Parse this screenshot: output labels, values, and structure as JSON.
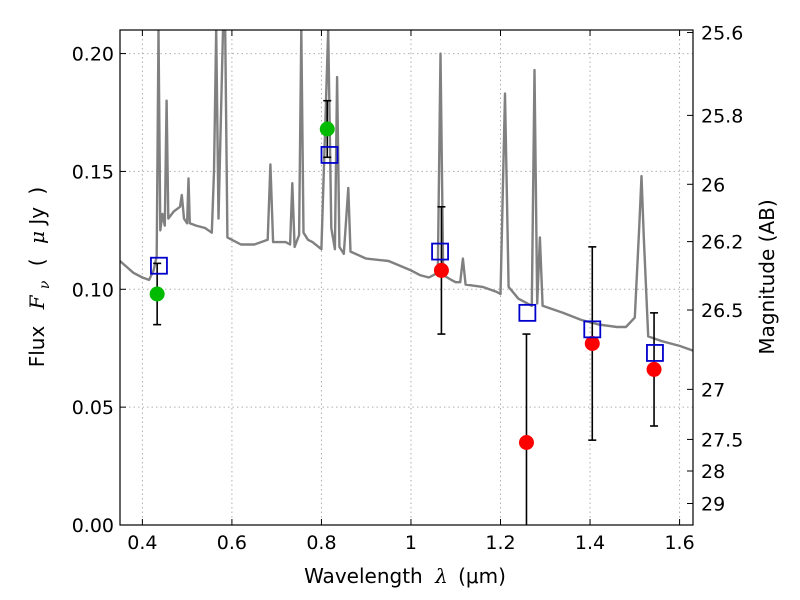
{
  "chart_data": {
    "type": "scatter",
    "xlabel_text": "Wavelength",
    "xlabel_symbol": "λ",
    "xlabel_unit": "(μm)",
    "ylabel_text": "Flux",
    "ylabel_symbol": "F",
    "ylabel_subscript": "ν",
    "ylabel_open": "(",
    "ylabel_unit_symbol": "μ",
    "ylabel_unit": "Jy",
    "ylabel_close": ")",
    "y2label": "Magnitude (AB)",
    "xlim": [
      0.35,
      1.63
    ],
    "ylim": [
      0.0,
      0.21
    ],
    "grid": true,
    "x_ticks": [
      {
        "v": 0.4,
        "label": "0.4"
      },
      {
        "v": 0.6,
        "label": "0.6"
      },
      {
        "v": 0.8,
        "label": "0.8"
      },
      {
        "v": 1.0,
        "label": "1"
      },
      {
        "v": 1.2,
        "label": "1.2"
      },
      {
        "v": 1.4,
        "label": "1.4"
      },
      {
        "v": 1.6,
        "label": "1.6"
      }
    ],
    "y_ticks": [
      {
        "v": 0.0,
        "label": "0.00"
      },
      {
        "v": 0.05,
        "label": "0.05"
      },
      {
        "v": 0.1,
        "label": "0.10"
      },
      {
        "v": 0.15,
        "label": "0.15"
      },
      {
        "v": 0.2,
        "label": "0.20"
      }
    ],
    "mag_ticks": [
      {
        "mag": 25.6,
        "label": "25.6"
      },
      {
        "mag": 25.8,
        "label": "25.8"
      },
      {
        "mag": 26,
        "label": "26"
      },
      {
        "mag": 26.2,
        "label": "26.2"
      },
      {
        "mag": 26.5,
        "label": "26.5"
      },
      {
        "mag": 27,
        "label": "27"
      },
      {
        "mag": 27.5,
        "label": "27.5"
      },
      {
        "mag": 28,
        "label": "28"
      },
      {
        "mag": 29,
        "label": "29"
      }
    ],
    "colors": {
      "model": "#808080",
      "green": "#00bb00",
      "red": "#ff0000",
      "square": "#0000cc",
      "errorbar": "#000000",
      "grid": "#b0b0b0"
    },
    "series": [
      {
        "kind": "model_spectrum",
        "points": [
          [
            0.35,
            0.112
          ],
          [
            0.38,
            0.107
          ],
          [
            0.4,
            0.105
          ],
          [
            0.415,
            0.104
          ],
          [
            0.425,
            0.108
          ],
          [
            0.432,
            0.114
          ],
          [
            0.436,
            0.21
          ],
          [
            0.44,
            0.125
          ],
          [
            0.445,
            0.132
          ],
          [
            0.45,
            0.127
          ],
          [
            0.454,
            0.18
          ],
          [
            0.458,
            0.13
          ],
          [
            0.47,
            0.133
          ],
          [
            0.484,
            0.135
          ],
          [
            0.488,
            0.14
          ],
          [
            0.493,
            0.13
          ],
          [
            0.5,
            0.128
          ],
          [
            0.503,
            0.147
          ],
          [
            0.506,
            0.128
          ],
          [
            0.52,
            0.127
          ],
          [
            0.54,
            0.126
          ],
          [
            0.555,
            0.124
          ],
          [
            0.56,
            0.15
          ],
          [
            0.565,
            0.21
          ],
          [
            0.57,
            0.13
          ],
          [
            0.58,
            0.21
          ],
          [
            0.585,
            0.21
          ],
          [
            0.59,
            0.122
          ],
          [
            0.62,
            0.119
          ],
          [
            0.65,
            0.119
          ],
          [
            0.68,
            0.121
          ],
          [
            0.686,
            0.153
          ],
          [
            0.692,
            0.12
          ],
          [
            0.72,
            0.12
          ],
          [
            0.73,
            0.119
          ],
          [
            0.735,
            0.145
          ],
          [
            0.74,
            0.118
          ],
          [
            0.75,
            0.123
          ],
          [
            0.755,
            0.21
          ],
          [
            0.76,
            0.124
          ],
          [
            0.77,
            0.121
          ],
          [
            0.78,
            0.12
          ],
          [
            0.8,
            0.117
          ],
          [
            0.815,
            0.21
          ],
          [
            0.822,
            0.126
          ],
          [
            0.83,
            0.117
          ],
          [
            0.835,
            0.19
          ],
          [
            0.84,
            0.118
          ],
          [
            0.85,
            0.115
          ],
          [
            0.86,
            0.143
          ],
          [
            0.865,
            0.116
          ],
          [
            0.9,
            0.113
          ],
          [
            0.95,
            0.112
          ],
          [
            1.0,
            0.108
          ],
          [
            1.02,
            0.106
          ],
          [
            1.04,
            0.105
          ],
          [
            1.06,
            0.107
          ],
          [
            1.066,
            0.2
          ],
          [
            1.072,
            0.106
          ],
          [
            1.09,
            0.104
          ],
          [
            1.1,
            0.103
          ],
          [
            1.11,
            0.103
          ],
          [
            1.116,
            0.113
          ],
          [
            1.122,
            0.102
          ],
          [
            1.16,
            0.101
          ],
          [
            1.19,
            0.099
          ],
          [
            1.2,
            0.098
          ],
          [
            1.21,
            0.183
          ],
          [
            1.218,
            0.101
          ],
          [
            1.24,
            0.096
          ],
          [
            1.25,
            0.095
          ],
          [
            1.27,
            0.093
          ],
          [
            1.276,
            0.193
          ],
          [
            1.282,
            0.094
          ],
          [
            1.288,
            0.122
          ],
          [
            1.294,
            0.093
          ],
          [
            1.34,
            0.09
          ],
          [
            1.38,
            0.087
          ],
          [
            1.42,
            0.085
          ],
          [
            1.46,
            0.084
          ],
          [
            1.48,
            0.084
          ],
          [
            1.5,
            0.088
          ],
          [
            1.51,
            0.127
          ],
          [
            1.515,
            0.148
          ],
          [
            1.52,
            0.122
          ],
          [
            1.53,
            0.08
          ],
          [
            1.56,
            0.078
          ],
          [
            1.6,
            0.076
          ],
          [
            1.63,
            0.074
          ]
        ]
      },
      {
        "kind": "green_points",
        "points": [
          {
            "x": 0.433,
            "y": 0.098,
            "err": 0.013
          },
          {
            "x": 0.813,
            "y": 0.168,
            "err": 0.012
          }
        ]
      },
      {
        "kind": "red_points",
        "points": [
          {
            "x": 1.068,
            "y": 0.108,
            "err": 0.027
          },
          {
            "x": 1.258,
            "y": 0.035,
            "err": 0.046
          },
          {
            "x": 1.405,
            "y": 0.077,
            "err": 0.041
          },
          {
            "x": 1.543,
            "y": 0.066,
            "err": 0.024
          }
        ]
      },
      {
        "kind": "model_squares",
        "points": [
          {
            "x": 0.437,
            "y": 0.11
          },
          {
            "x": 0.818,
            "y": 0.157
          },
          {
            "x": 1.065,
            "y": 0.116
          },
          {
            "x": 1.26,
            "y": 0.09
          },
          {
            "x": 1.405,
            "y": 0.083
          },
          {
            "x": 1.545,
            "y": 0.073
          }
        ]
      }
    ]
  }
}
